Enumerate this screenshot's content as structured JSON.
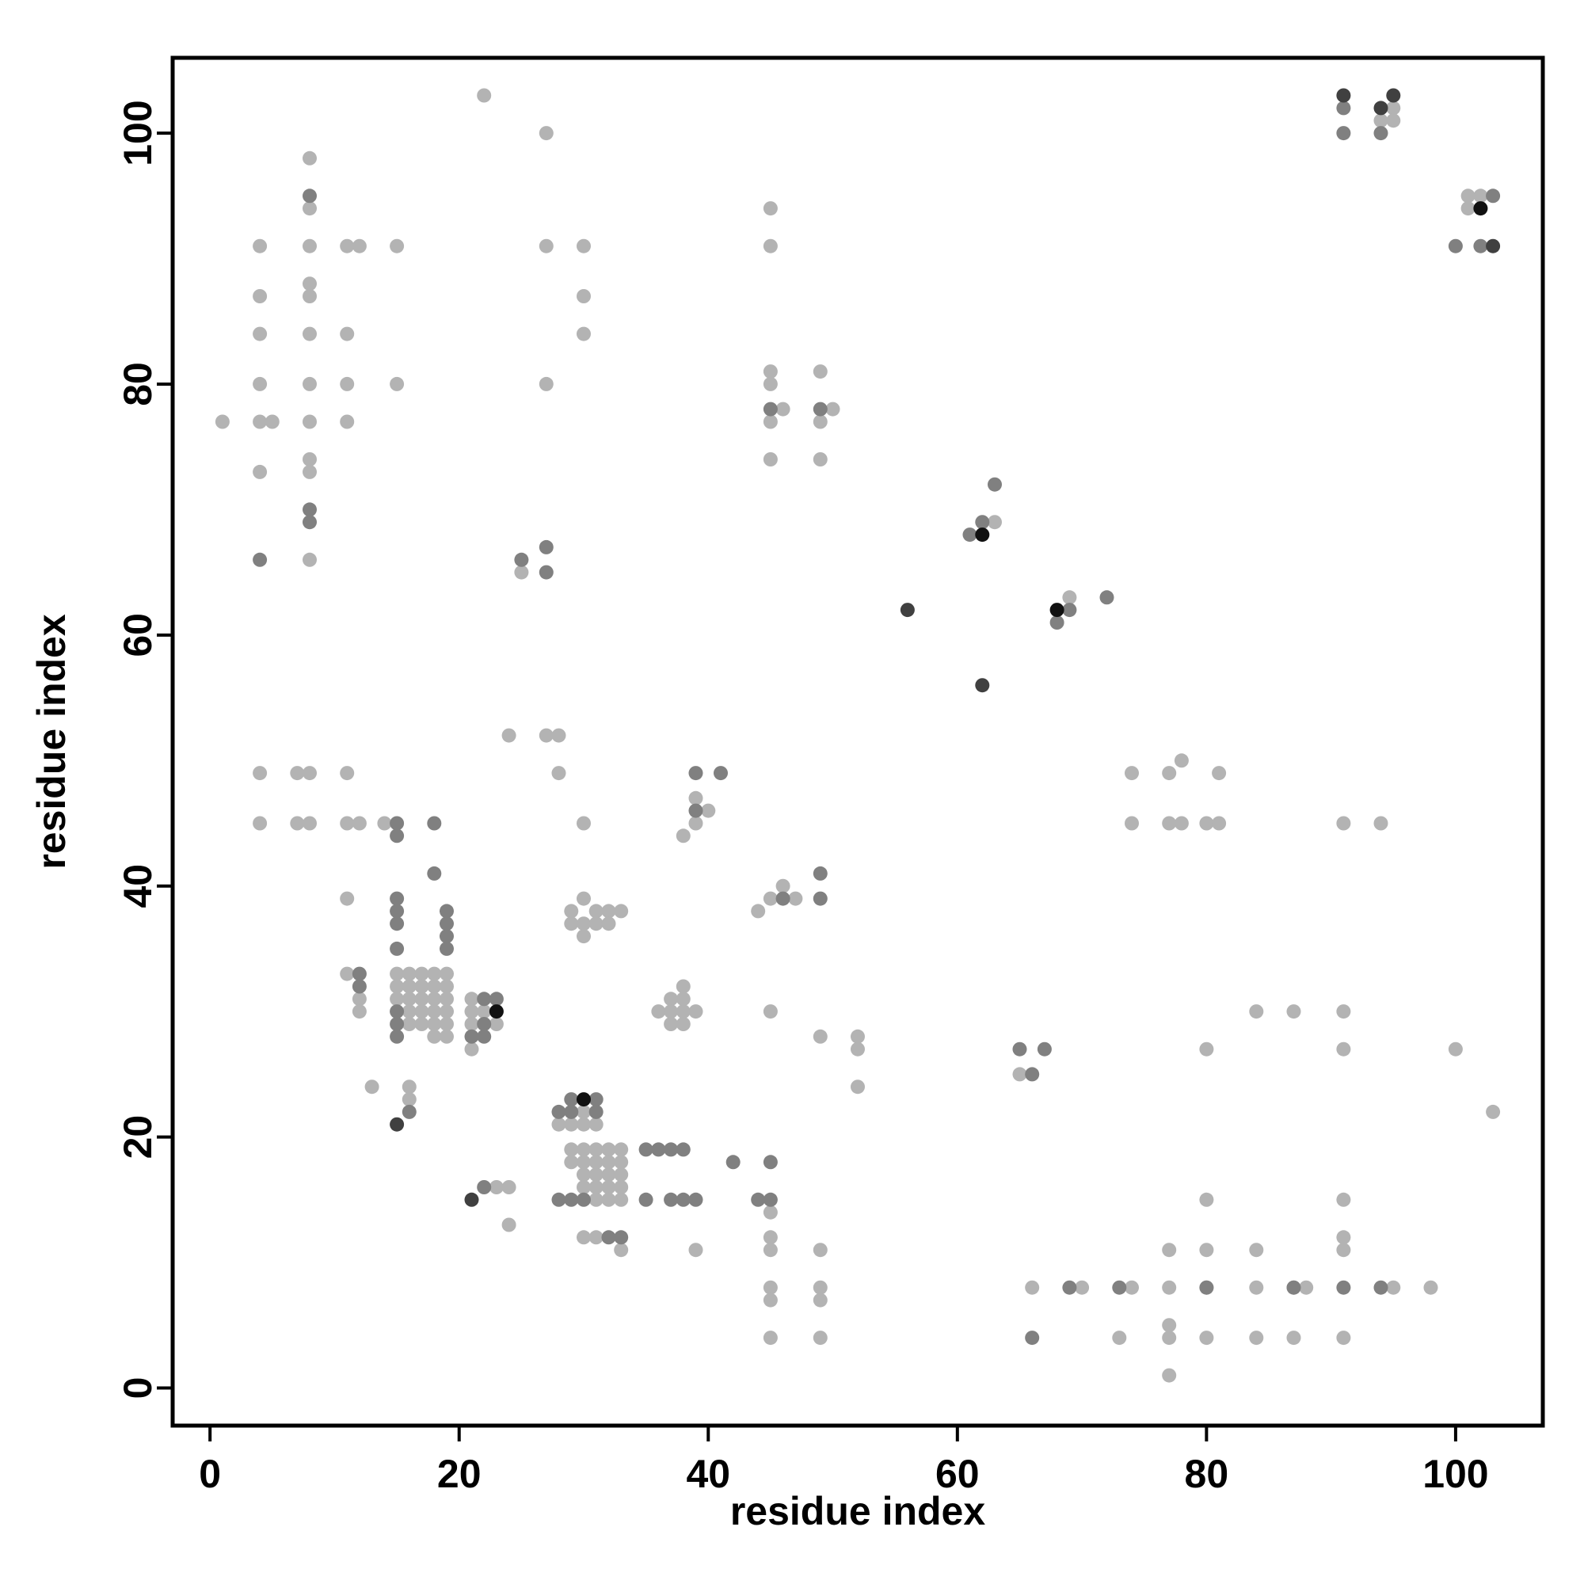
{
  "chart_data": {
    "type": "scatter",
    "title": "",
    "xlabel": "residue index",
    "ylabel": "residue index",
    "xlim": [
      -3,
      107
    ],
    "ylim": [
      -3,
      106
    ],
    "xticks": [
      0,
      20,
      40,
      60,
      80,
      100
    ],
    "yticks": [
      0,
      20,
      40,
      60,
      80,
      100
    ],
    "xtick_labels": [
      "0",
      "20",
      "40",
      "60",
      "80",
      "100"
    ],
    "ytick_labels": [
      "0",
      "20",
      "40",
      "60",
      "80",
      "100"
    ],
    "grid": false,
    "legend": "none",
    "shade_colors": {
      "light": "#b3b3b3",
      "mid": "#808080",
      "dark": "#404040",
      "black": "#111111"
    },
    "series": [
      {
        "shade": "light",
        "points": [
          [
            22,
            103
          ],
          [
            27,
            100
          ],
          [
            8,
            98
          ],
          [
            8,
            94
          ],
          [
            45,
            94
          ],
          [
            101,
            94
          ],
          [
            102,
            95
          ],
          [
            95,
            102
          ],
          [
            94,
            101
          ],
          [
            95,
            101
          ],
          [
            102,
            94
          ],
          [
            101,
            95
          ],
          [
            4,
            91
          ],
          [
            8,
            91
          ],
          [
            11,
            91
          ],
          [
            12,
            91
          ],
          [
            15,
            91
          ],
          [
            27,
            91
          ],
          [
            30,
            91
          ],
          [
            45,
            91
          ],
          [
            4,
            87
          ],
          [
            8,
            87
          ],
          [
            8,
            88
          ],
          [
            30,
            87
          ],
          [
            4,
            84
          ],
          [
            8,
            84
          ],
          [
            11,
            84
          ],
          [
            30,
            84
          ],
          [
            4,
            80
          ],
          [
            8,
            80
          ],
          [
            11,
            80
          ],
          [
            15,
            80
          ],
          [
            27,
            80
          ],
          [
            45,
            80
          ],
          [
            45,
            81
          ],
          [
            49,
            81
          ],
          [
            1,
            77
          ],
          [
            4,
            77
          ],
          [
            5,
            77
          ],
          [
            8,
            77
          ],
          [
            11,
            77
          ],
          [
            45,
            77
          ],
          [
            46,
            78
          ],
          [
            49,
            77
          ],
          [
            50,
            78
          ],
          [
            4,
            73
          ],
          [
            8,
            73
          ],
          [
            8,
            74
          ],
          [
            45,
            74
          ],
          [
            49,
            74
          ],
          [
            8,
            66
          ],
          [
            25,
            65
          ],
          [
            63,
            69
          ],
          [
            69,
            63
          ],
          [
            24,
            52
          ],
          [
            27,
            52
          ],
          [
            28,
            52
          ],
          [
            4,
            49
          ],
          [
            7,
            49
          ],
          [
            8,
            49
          ],
          [
            11,
            49
          ],
          [
            28,
            49
          ],
          [
            74,
            49
          ],
          [
            77,
            49
          ],
          [
            78,
            50
          ],
          [
            81,
            49
          ],
          [
            4,
            45
          ],
          [
            7,
            45
          ],
          [
            8,
            45
          ],
          [
            11,
            45
          ],
          [
            12,
            45
          ],
          [
            14,
            45
          ],
          [
            30,
            45
          ],
          [
            39,
            45
          ],
          [
            39,
            47
          ],
          [
            40,
            46
          ],
          [
            38,
            44
          ],
          [
            74,
            45
          ],
          [
            77,
            45
          ],
          [
            78,
            45
          ],
          [
            80,
            45
          ],
          [
            81,
            45
          ],
          [
            91,
            45
          ],
          [
            94,
            45
          ],
          [
            11,
            39
          ],
          [
            44,
            38
          ],
          [
            45,
            39
          ],
          [
            46,
            40
          ],
          [
            47,
            39
          ],
          [
            29,
            38
          ],
          [
            30,
            39
          ],
          [
            30,
            37
          ],
          [
            31,
            38
          ],
          [
            32,
            38
          ],
          [
            33,
            38
          ],
          [
            29,
            37
          ],
          [
            31,
            37
          ],
          [
            32,
            37
          ],
          [
            30,
            36
          ],
          [
            11,
            33
          ],
          [
            12,
            31
          ],
          [
            12,
            30
          ],
          [
            15,
            33
          ],
          [
            16,
            33
          ],
          [
            17,
            33
          ],
          [
            18,
            33
          ],
          [
            19,
            33
          ],
          [
            15,
            32
          ],
          [
            16,
            32
          ],
          [
            17,
            32
          ],
          [
            18,
            32
          ],
          [
            19,
            32
          ],
          [
            15,
            31
          ],
          [
            16,
            31
          ],
          [
            17,
            31
          ],
          [
            18,
            31
          ],
          [
            19,
            31
          ],
          [
            16,
            30
          ],
          [
            17,
            30
          ],
          [
            18,
            30
          ],
          [
            19,
            30
          ],
          [
            16,
            29
          ],
          [
            17,
            29
          ],
          [
            18,
            29
          ],
          [
            19,
            29
          ],
          [
            18,
            28
          ],
          [
            19,
            28
          ],
          [
            21,
            31
          ],
          [
            21,
            30
          ],
          [
            22,
            30
          ],
          [
            21,
            29
          ],
          [
            21,
            27
          ],
          [
            23,
            29
          ],
          [
            36,
            30
          ],
          [
            37,
            31
          ],
          [
            37,
            30
          ],
          [
            38,
            32
          ],
          [
            38,
            31
          ],
          [
            38,
            30
          ],
          [
            39,
            30
          ],
          [
            37,
            29
          ],
          [
            38,
            29
          ],
          [
            45,
            30
          ],
          [
            84,
            30
          ],
          [
            87,
            30
          ],
          [
            91,
            30
          ],
          [
            49,
            28
          ],
          [
            52,
            28
          ],
          [
            52,
            27
          ],
          [
            80,
            27
          ],
          [
            91,
            27
          ],
          [
            100,
            27
          ],
          [
            65,
            25
          ],
          [
            52,
            24
          ],
          [
            13,
            24
          ],
          [
            16,
            24
          ],
          [
            16,
            23
          ],
          [
            103,
            22
          ],
          [
            28,
            21
          ],
          [
            29,
            21
          ],
          [
            30,
            22
          ],
          [
            31,
            21
          ],
          [
            30,
            21
          ],
          [
            29,
            19
          ],
          [
            30,
            19
          ],
          [
            31,
            19
          ],
          [
            32,
            19
          ],
          [
            33,
            19
          ],
          [
            29,
            18
          ],
          [
            30,
            18
          ],
          [
            31,
            18
          ],
          [
            32,
            18
          ],
          [
            33,
            18
          ],
          [
            30,
            17
          ],
          [
            31,
            17
          ],
          [
            32,
            17
          ],
          [
            33,
            17
          ],
          [
            30,
            16
          ],
          [
            31,
            16
          ],
          [
            32,
            16
          ],
          [
            33,
            16
          ],
          [
            31,
            15
          ],
          [
            32,
            15
          ],
          [
            33,
            15
          ],
          [
            23,
            16
          ],
          [
            24,
            16
          ],
          [
            24,
            13
          ],
          [
            30,
            12
          ],
          [
            31,
            12
          ],
          [
            33,
            11
          ],
          [
            39,
            11
          ],
          [
            45,
            14
          ],
          [
            45,
            12
          ],
          [
            45,
            11
          ],
          [
            49,
            11
          ],
          [
            45,
            8
          ],
          [
            45,
            7
          ],
          [
            49,
            8
          ],
          [
            49,
            7
          ],
          [
            45,
            4
          ],
          [
            49,
            4
          ],
          [
            80,
            15
          ],
          [
            91,
            15
          ],
          [
            91,
            12
          ],
          [
            91,
            11
          ],
          [
            77,
            11
          ],
          [
            80,
            11
          ],
          [
            84,
            11
          ],
          [
            66,
            8
          ],
          [
            70,
            8
          ],
          [
            74,
            8
          ],
          [
            77,
            8
          ],
          [
            80,
            8
          ],
          [
            84,
            8
          ],
          [
            87,
            8
          ],
          [
            88,
            8
          ],
          [
            95,
            8
          ],
          [
            98,
            8
          ],
          [
            73,
            4
          ],
          [
            77,
            4
          ],
          [
            77,
            5
          ],
          [
            80,
            4
          ],
          [
            84,
            4
          ],
          [
            87,
            4
          ],
          [
            91,
            4
          ],
          [
            77,
            1
          ]
        ]
      },
      {
        "shade": "mid",
        "points": [
          [
            91,
            102
          ],
          [
            91,
            100
          ],
          [
            94,
            100
          ],
          [
            8,
            95
          ],
          [
            45,
            78
          ],
          [
            49,
            78
          ],
          [
            103,
            95
          ],
          [
            100,
            91
          ],
          [
            102,
            91
          ],
          [
            4,
            66
          ],
          [
            8,
            70
          ],
          [
            8,
            69
          ],
          [
            25,
            66
          ],
          [
            27,
            67
          ],
          [
            27,
            65
          ],
          [
            61,
            68
          ],
          [
            62,
            69
          ],
          [
            63,
            72
          ],
          [
            68,
            61
          ],
          [
            69,
            62
          ],
          [
            72,
            63
          ],
          [
            39,
            49
          ],
          [
            41,
            49
          ],
          [
            39,
            46
          ],
          [
            15,
            45
          ],
          [
            15,
            44
          ],
          [
            18,
            45
          ],
          [
            18,
            41
          ],
          [
            49,
            41
          ],
          [
            46,
            39
          ],
          [
            49,
            39
          ],
          [
            15,
            39
          ],
          [
            15,
            38
          ],
          [
            15,
            37
          ],
          [
            15,
            35
          ],
          [
            19,
            38
          ],
          [
            19,
            37
          ],
          [
            19,
            36
          ],
          [
            19,
            35
          ],
          [
            12,
            33
          ],
          [
            12,
            32
          ],
          [
            15,
            30
          ],
          [
            15,
            29
          ],
          [
            15,
            28
          ],
          [
            22,
            31
          ],
          [
            23,
            31
          ],
          [
            22,
            29
          ],
          [
            22,
            28
          ],
          [
            21,
            28
          ],
          [
            65,
            27
          ],
          [
            67,
            27
          ],
          [
            66,
            25
          ],
          [
            16,
            22
          ],
          [
            31,
            23
          ],
          [
            29,
            23
          ],
          [
            31,
            22
          ],
          [
            28,
            22
          ],
          [
            29,
            22
          ],
          [
            35,
            19
          ],
          [
            36,
            19
          ],
          [
            37,
            19
          ],
          [
            38,
            19
          ],
          [
            42,
            18
          ],
          [
            45,
            18
          ],
          [
            28,
            15
          ],
          [
            29,
            15
          ],
          [
            30,
            15
          ],
          [
            35,
            15
          ],
          [
            37,
            15
          ],
          [
            38,
            15
          ],
          [
            39,
            15
          ],
          [
            44,
            15
          ],
          [
            45,
            15
          ],
          [
            22,
            16
          ],
          [
            32,
            12
          ],
          [
            33,
            12
          ],
          [
            69,
            8
          ],
          [
            73,
            8
          ],
          [
            80,
            8
          ],
          [
            87,
            8
          ],
          [
            91,
            8
          ],
          [
            94,
            8
          ],
          [
            66,
            4
          ]
        ]
      },
      {
        "shade": "dark",
        "points": [
          [
            91,
            103
          ],
          [
            95,
            103
          ],
          [
            94,
            102
          ],
          [
            103,
            91
          ],
          [
            56,
            62
          ],
          [
            62,
            56
          ],
          [
            15,
            21
          ],
          [
            21,
            15
          ]
        ]
      },
      {
        "shade": "black",
        "points": [
          [
            102,
            94
          ],
          [
            62,
            68
          ],
          [
            68,
            62
          ],
          [
            23,
            30
          ],
          [
            30,
            23
          ]
        ]
      }
    ]
  }
}
